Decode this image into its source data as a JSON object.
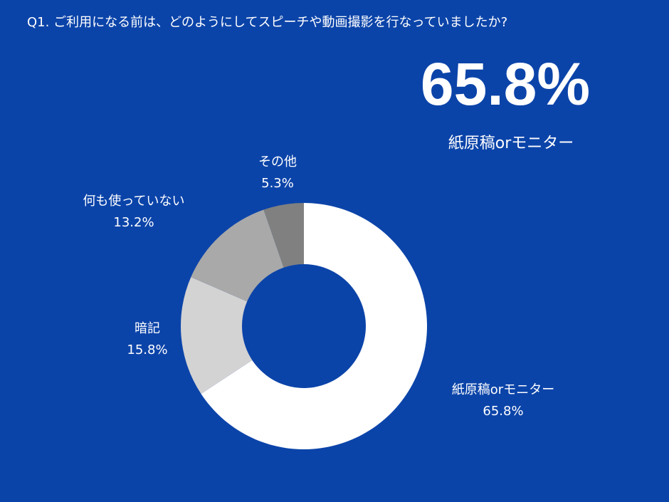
{
  "chart_data": {
    "type": "donut",
    "title": "Q1. ご利用になる前は、どのようにしてスピーチや動画撮影を行なっていましたか?",
    "highlight": {
      "label": "65.8%",
      "name": "紙原稿orモニター"
    },
    "categories": [
      "紙原稿orモニター",
      "暗記",
      "何も使っていない",
      "その他"
    ],
    "values": [
      65.8,
      15.8,
      13.2,
      5.3
    ],
    "value_labels": [
      "65.8%",
      "15.8%",
      "13.2%",
      "5.3%"
    ],
    "colors": [
      "#ffffff",
      "#d3d3d3",
      "#a9a9a9",
      "#808080"
    ]
  }
}
